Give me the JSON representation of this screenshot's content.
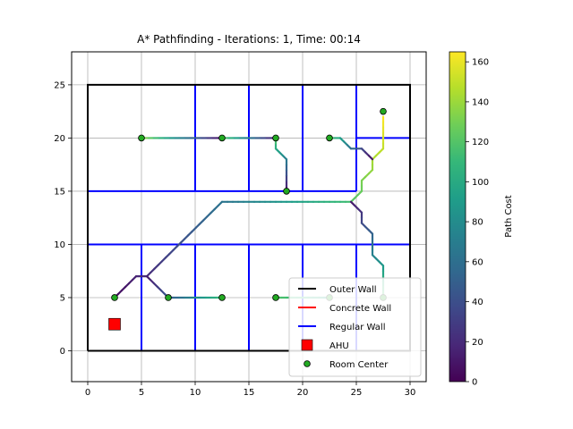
{
  "chart_data": {
    "type": "line",
    "title": "A* Pathfinding - Iterations: 1, Time: 00:14",
    "xlim": [
      -1.5,
      31.5
    ],
    "ylim": [
      -2.9,
      28.1
    ],
    "x_ticks": [
      0,
      5,
      10,
      15,
      20,
      25,
      30
    ],
    "y_ticks": [
      0,
      5,
      10,
      15,
      20,
      25
    ],
    "grid": true,
    "legend_placement": "lower-right",
    "legend": [
      {
        "label": "Outer Wall",
        "kind": "line",
        "color": "#000000"
      },
      {
        "label": "Concrete Wall",
        "kind": "line",
        "color": "#ff0000"
      },
      {
        "label": "Regular Wall",
        "kind": "line",
        "color": "#0000ff"
      },
      {
        "label": "AHU",
        "kind": "square",
        "color": "#ff0000"
      },
      {
        "label": "Room Center",
        "kind": "circle",
        "color": "#22aa22"
      }
    ],
    "colorbar": {
      "label": "Path Cost",
      "min": 0,
      "max": 165,
      "ticks": [
        0,
        20,
        40,
        60,
        80,
        100,
        120,
        140,
        160
      ],
      "colormap": [
        "#440154",
        "#482878",
        "#3e4989",
        "#31688e",
        "#26828e",
        "#1f9e89",
        "#35b779",
        "#6ece58",
        "#b5de2b",
        "#fde725"
      ]
    },
    "outer_wall": [
      [
        0,
        0
      ],
      [
        30,
        0
      ],
      [
        30,
        25
      ],
      [
        0,
        25
      ],
      [
        0,
        0
      ]
    ],
    "regular_walls": [
      [
        [
          0,
          15
        ],
        [
          25,
          15
        ]
      ],
      [
        [
          0,
          10
        ],
        [
          30,
          10
        ]
      ],
      [
        [
          25,
          20
        ],
        [
          30,
          20
        ]
      ],
      [
        [
          10,
          15
        ],
        [
          10,
          25
        ]
      ],
      [
        [
          15,
          15
        ],
        [
          15,
          25
        ]
      ],
      [
        [
          20,
          15
        ],
        [
          20,
          25
        ]
      ],
      [
        [
          25,
          15
        ],
        [
          25,
          25
        ]
      ],
      [
        [
          5,
          0
        ],
        [
          5,
          10
        ]
      ],
      [
        [
          10,
          0
        ],
        [
          10,
          10
        ]
      ],
      [
        [
          15,
          0
        ],
        [
          15,
          10
        ]
      ],
      [
        [
          20,
          0
        ],
        [
          20,
          10
        ]
      ],
      [
        [
          25,
          0
        ],
        [
          25,
          10
        ]
      ]
    ],
    "ahu": [
      2.5,
      2.5
    ],
    "room_centers": [
      [
        5,
        20
      ],
      [
        12.5,
        20
      ],
      [
        17.5,
        20
      ],
      [
        22.5,
        20
      ],
      [
        27.5,
        22.5
      ],
      [
        18.5,
        15
      ],
      [
        2.5,
        5
      ],
      [
        7.5,
        5
      ],
      [
        12.5,
        5
      ],
      [
        17.5,
        5
      ],
      [
        22.5,
        5
      ],
      [
        27.5,
        5
      ]
    ],
    "paths": [
      {
        "points": [
          [
            27.5,
            22
          ],
          [
            27.5,
            19
          ],
          [
            26.5,
            18
          ],
          [
            26.5,
            17
          ],
          [
            25.5,
            16
          ],
          [
            25.5,
            15
          ],
          [
            24.5,
            14
          ]
        ],
        "cost_start": 165,
        "cost_end": 120
      },
      {
        "points": [
          [
            22.5,
            20
          ],
          [
            23.5,
            20
          ],
          [
            24.5,
            19
          ],
          [
            25.5,
            19
          ],
          [
            26.5,
            18
          ]
        ],
        "cost_start": 120,
        "cost_end": 5
      },
      {
        "points": [
          [
            24.5,
            14
          ],
          [
            12.5,
            14
          ],
          [
            5.5,
            7
          ],
          [
            4.5,
            7
          ],
          [
            2.5,
            5
          ]
        ],
        "cost_start": 115,
        "cost_end": 5
      },
      {
        "points": [
          [
            5.5,
            7
          ],
          [
            7.5,
            5
          ],
          [
            12.5,
            5
          ]
        ],
        "cost_start": 10,
        "cost_end": 110
      },
      {
        "points": [
          [
            24.5,
            14
          ],
          [
            25.5,
            13
          ],
          [
            25.5,
            12
          ],
          [
            26.5,
            11
          ],
          [
            26.5,
            9
          ],
          [
            27.5,
            8
          ],
          [
            27.5,
            5
          ]
        ],
        "cost_start": 10,
        "cost_end": 120
      },
      {
        "points": [
          [
            17.5,
            5
          ],
          [
            22.5,
            5
          ]
        ],
        "cost_start": 120,
        "cost_end": 95
      },
      {
        "points": [
          [
            18.5,
            15
          ],
          [
            18.5,
            18
          ],
          [
            17.5,
            19
          ],
          [
            17.5,
            20
          ]
        ],
        "cost_start": 5,
        "cost_end": 120
      },
      {
        "points": [
          [
            17.5,
            20
          ],
          [
            12.5,
            20
          ]
        ],
        "cost_start": 10,
        "cost_end": 120
      },
      {
        "points": [
          [
            12.5,
            20
          ],
          [
            5,
            20
          ]
        ],
        "cost_start": 5,
        "cost_end": 135
      }
    ]
  }
}
